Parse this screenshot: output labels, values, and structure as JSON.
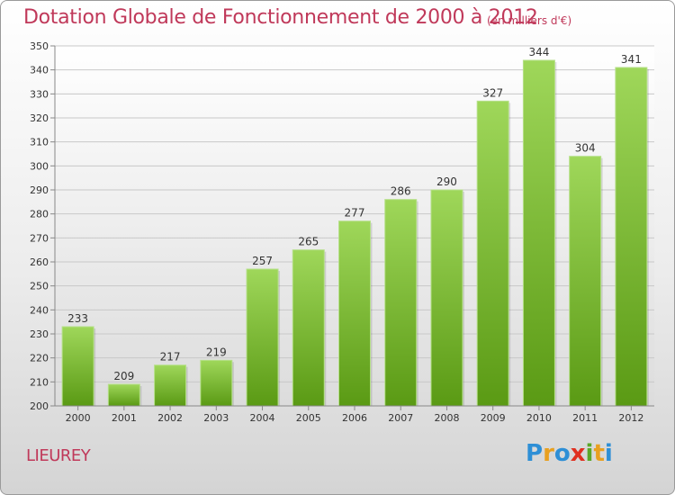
{
  "header": {
    "title": "Dotation Globale de Fonctionnement de 2000 à 2012",
    "subtitle": "(en milliers d'€)"
  },
  "footer": {
    "commune": "LIEUREY",
    "logo_text": "Proxiti",
    "logo_colors": [
      "#2e8fd6",
      "#e8a020",
      "#2e8fd6",
      "#e03020",
      "#5aa828",
      "#e8a020",
      "#2e8fd6"
    ]
  },
  "colors": {
    "bar_top": "#9fd75a",
    "bar_bottom": "#5a9a14",
    "text_accent": "#c0395a"
  },
  "chart_data": {
    "type": "bar",
    "categories": [
      "2000",
      "2001",
      "2002",
      "2003",
      "2004",
      "2005",
      "2006",
      "2007",
      "2008",
      "2009",
      "2010",
      "2011",
      "2012"
    ],
    "values": [
      233,
      209,
      217,
      219,
      257,
      265,
      277,
      286,
      290,
      327,
      344,
      304,
      341
    ],
    "yticks": [
      200,
      210,
      220,
      230,
      240,
      250,
      260,
      270,
      280,
      290,
      300,
      310,
      320,
      330,
      340,
      350
    ],
    "ylim": [
      200,
      350
    ],
    "grid": true
  }
}
